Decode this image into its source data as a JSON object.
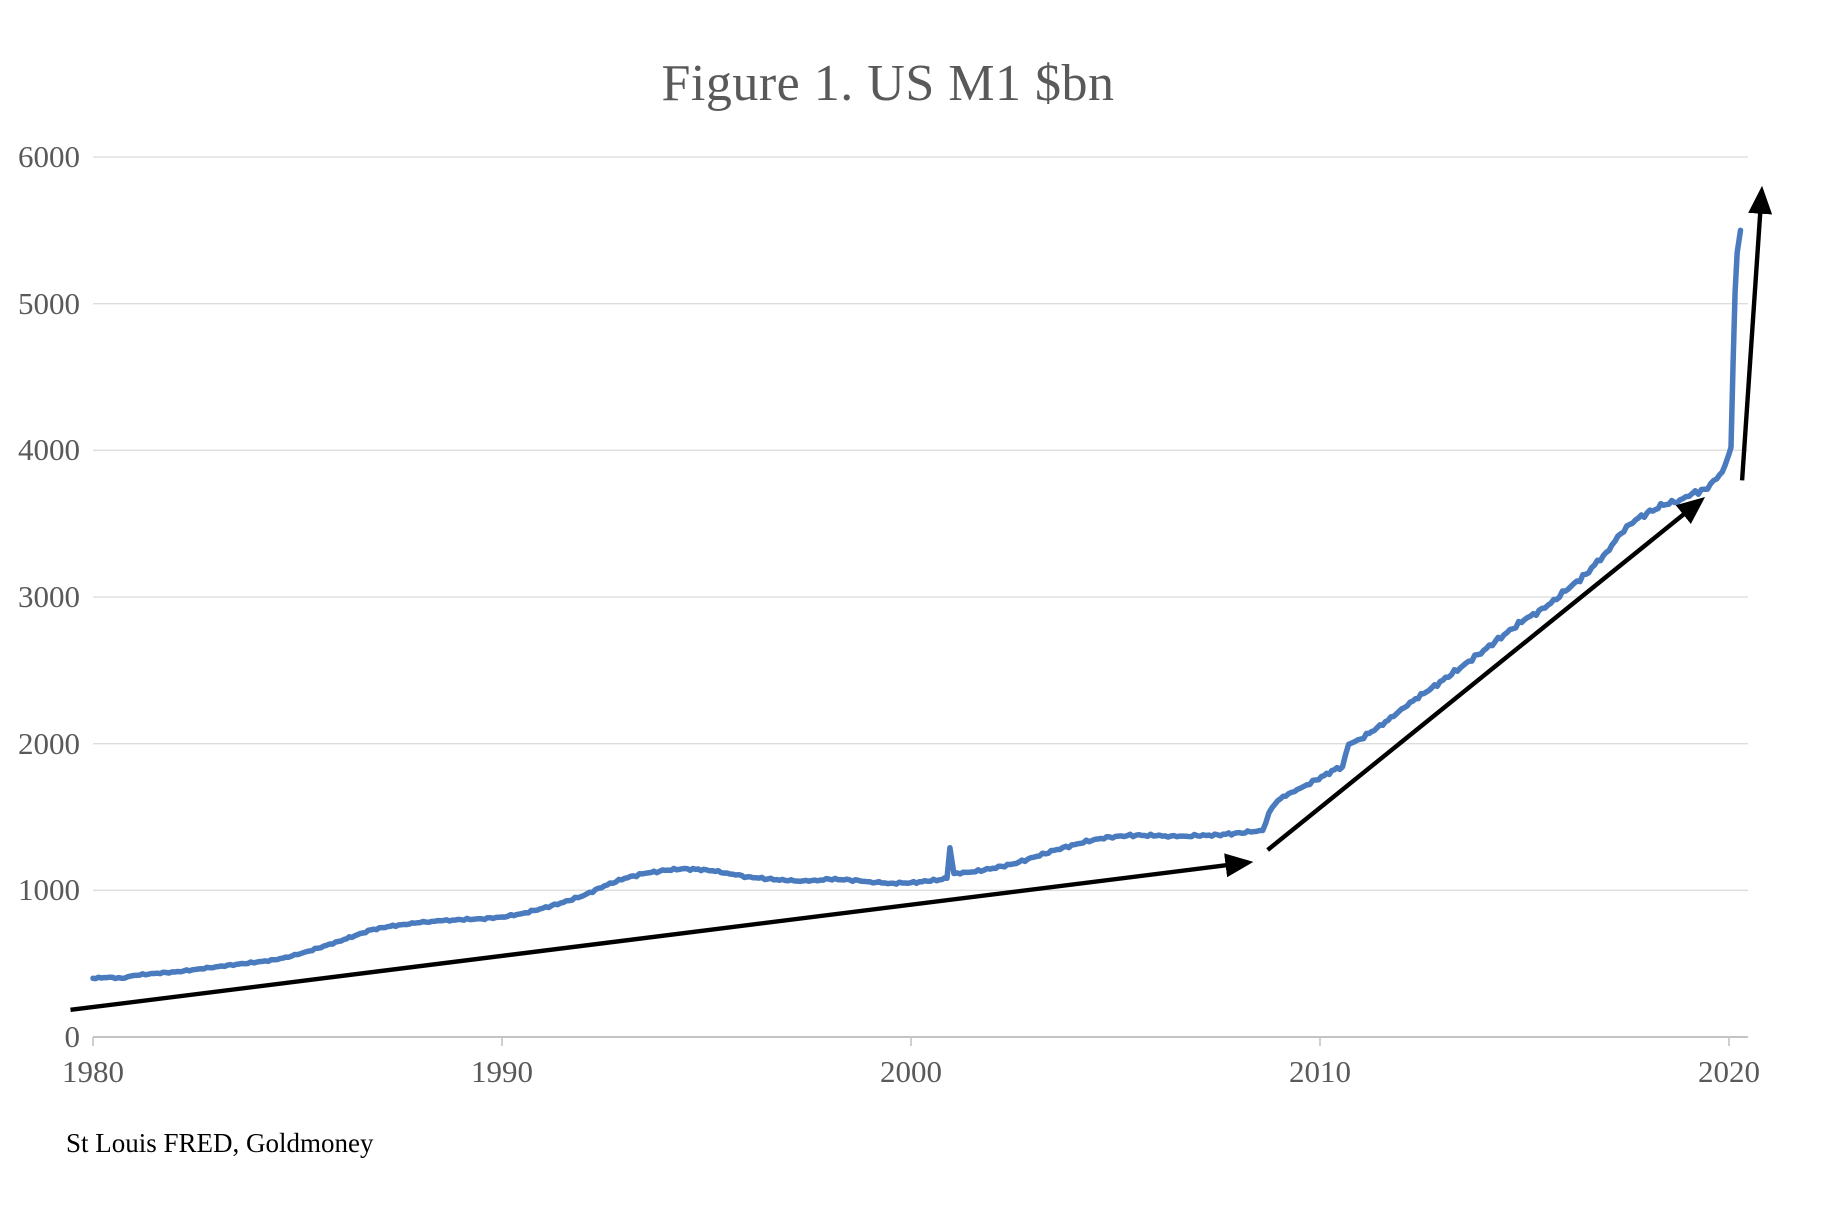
{
  "chart": {
    "title": "Figure 1. US M1 $bn",
    "source_note": "St Louis FRED, Goldmoney",
    "colors": {
      "line": "#4A7BBE",
      "arrow": "#000000",
      "gridline": "#DCDCDC",
      "axis": "#C4C4C4",
      "tick_text": "#595959",
      "title_text": "#595959",
      "source_text": "#000000",
      "background": "#FFFFFF"
    }
  },
  "chart_data": {
    "type": "line",
    "title": "Figure 1. US M1 $bn",
    "xlabel": "",
    "ylabel": "",
    "xlim": [
      1980,
      2020.4
    ],
    "ylim": [
      0,
      6000
    ],
    "x_ticks": [
      1980,
      1990,
      2000,
      2010,
      2020
    ],
    "y_ticks": [
      0,
      1000,
      2000,
      3000,
      4000,
      5000,
      6000
    ],
    "grid": "horizontal",
    "legend": "none",
    "source": "St Louis FRED, Goldmoney",
    "series": [
      {
        "name": "US M1 ($bn)",
        "points": [
          [
            1980,
            400
          ],
          [
            1980.4,
            408
          ],
          [
            1980.7,
            400
          ],
          [
            1981,
            420
          ],
          [
            1981.5,
            433
          ],
          [
            1982,
            443
          ],
          [
            1982.5,
            460
          ],
          [
            1983,
            478
          ],
          [
            1983.5,
            495
          ],
          [
            1984,
            510
          ],
          [
            1984.5,
            528
          ],
          [
            1985,
            562
          ],
          [
            1985.5,
            605
          ],
          [
            1986,
            652
          ],
          [
            1986.4,
            690
          ],
          [
            1986.8,
            730
          ],
          [
            1987.2,
            752
          ],
          [
            1987.6,
            768
          ],
          [
            1988,
            780
          ],
          [
            1988.5,
            792
          ],
          [
            1989,
            800
          ],
          [
            1989.5,
            806
          ],
          [
            1990,
            818
          ],
          [
            1990.5,
            842
          ],
          [
            1991,
            878
          ],
          [
            1991.5,
            918
          ],
          [
            1992,
            965
          ],
          [
            1992.5,
            1030
          ],
          [
            1993,
            1082
          ],
          [
            1993.5,
            1116
          ],
          [
            1994,
            1136
          ],
          [
            1994.4,
            1147
          ],
          [
            1995,
            1140
          ],
          [
            1995.5,
            1118
          ],
          [
            1996,
            1092
          ],
          [
            1996.5,
            1078
          ],
          [
            1997,
            1066
          ],
          [
            1997.5,
            1062
          ],
          [
            1998,
            1076
          ],
          [
            1998.5,
            1072
          ],
          [
            1999,
            1058
          ],
          [
            1999.5,
            1048
          ],
          [
            2000,
            1052
          ],
          [
            2000.4,
            1062
          ],
          [
            2000.7,
            1072
          ],
          [
            2000.88,
            1082
          ],
          [
            2000.95,
            1290
          ],
          [
            2001.05,
            1115
          ],
          [
            2001.5,
            1125
          ],
          [
            2002,
            1150
          ],
          [
            2002.5,
            1180
          ],
          [
            2003,
            1225
          ],
          [
            2003.5,
            1272
          ],
          [
            2004,
            1312
          ],
          [
            2004.5,
            1348
          ],
          [
            2005,
            1368
          ],
          [
            2005.5,
            1376
          ],
          [
            2006,
            1372
          ],
          [
            2006.5,
            1366
          ],
          [
            2007,
            1372
          ],
          [
            2007.5,
            1378
          ],
          [
            2007.9,
            1388
          ],
          [
            2008.3,
            1398
          ],
          [
            2008.6,
            1408
          ],
          [
            2008.75,
            1528
          ],
          [
            2008.9,
            1588
          ],
          [
            2009.1,
            1642
          ],
          [
            2009.3,
            1668
          ],
          [
            2009.6,
            1708
          ],
          [
            2009.9,
            1752
          ],
          [
            2010.1,
            1782
          ],
          [
            2010.35,
            1822
          ],
          [
            2010.55,
            1842
          ],
          [
            2010.7,
            1995
          ],
          [
            2011,
            2032
          ],
          [
            2011.4,
            2110
          ],
          [
            2011.8,
            2185
          ],
          [
            2012.2,
            2282
          ],
          [
            2012.6,
            2352
          ],
          [
            2013,
            2432
          ],
          [
            2013.5,
            2532
          ],
          [
            2014,
            2635
          ],
          [
            2014.5,
            2742
          ],
          [
            2015,
            2845
          ],
          [
            2015.5,
            2925
          ],
          [
            2016,
            3040
          ],
          [
            2016.5,
            3155
          ],
          [
            2017,
            3305
          ],
          [
            2017.5,
            3485
          ],
          [
            2018,
            3575
          ],
          [
            2018.4,
            3625
          ],
          [
            2018.8,
            3662
          ],
          [
            2019.1,
            3705
          ],
          [
            2019.4,
            3735
          ],
          [
            2019.7,
            3805
          ],
          [
            2019.9,
            3895
          ],
          [
            2020,
            3975
          ],
          [
            2020.05,
            4020
          ],
          [
            2020.1,
            4600
          ],
          [
            2020.15,
            5080
          ],
          [
            2020.2,
            5350
          ],
          [
            2020.28,
            5500
          ]
        ]
      }
    ],
    "annotations": {
      "arrows": [
        {
          "name": "trend-arrow-1980-2008",
          "from": [
            1979.45,
            185
          ],
          "to": [
            2008.25,
            1190
          ]
        },
        {
          "name": "trend-arrow-2008-2019",
          "from": [
            2008.72,
            1275
          ],
          "to": [
            2019.32,
            3660
          ]
        },
        {
          "name": "trend-arrow-2020-spike",
          "from": [
            2020.32,
            3795
          ],
          "to": [
            2020.8,
            5770
          ]
        }
      ]
    }
  }
}
